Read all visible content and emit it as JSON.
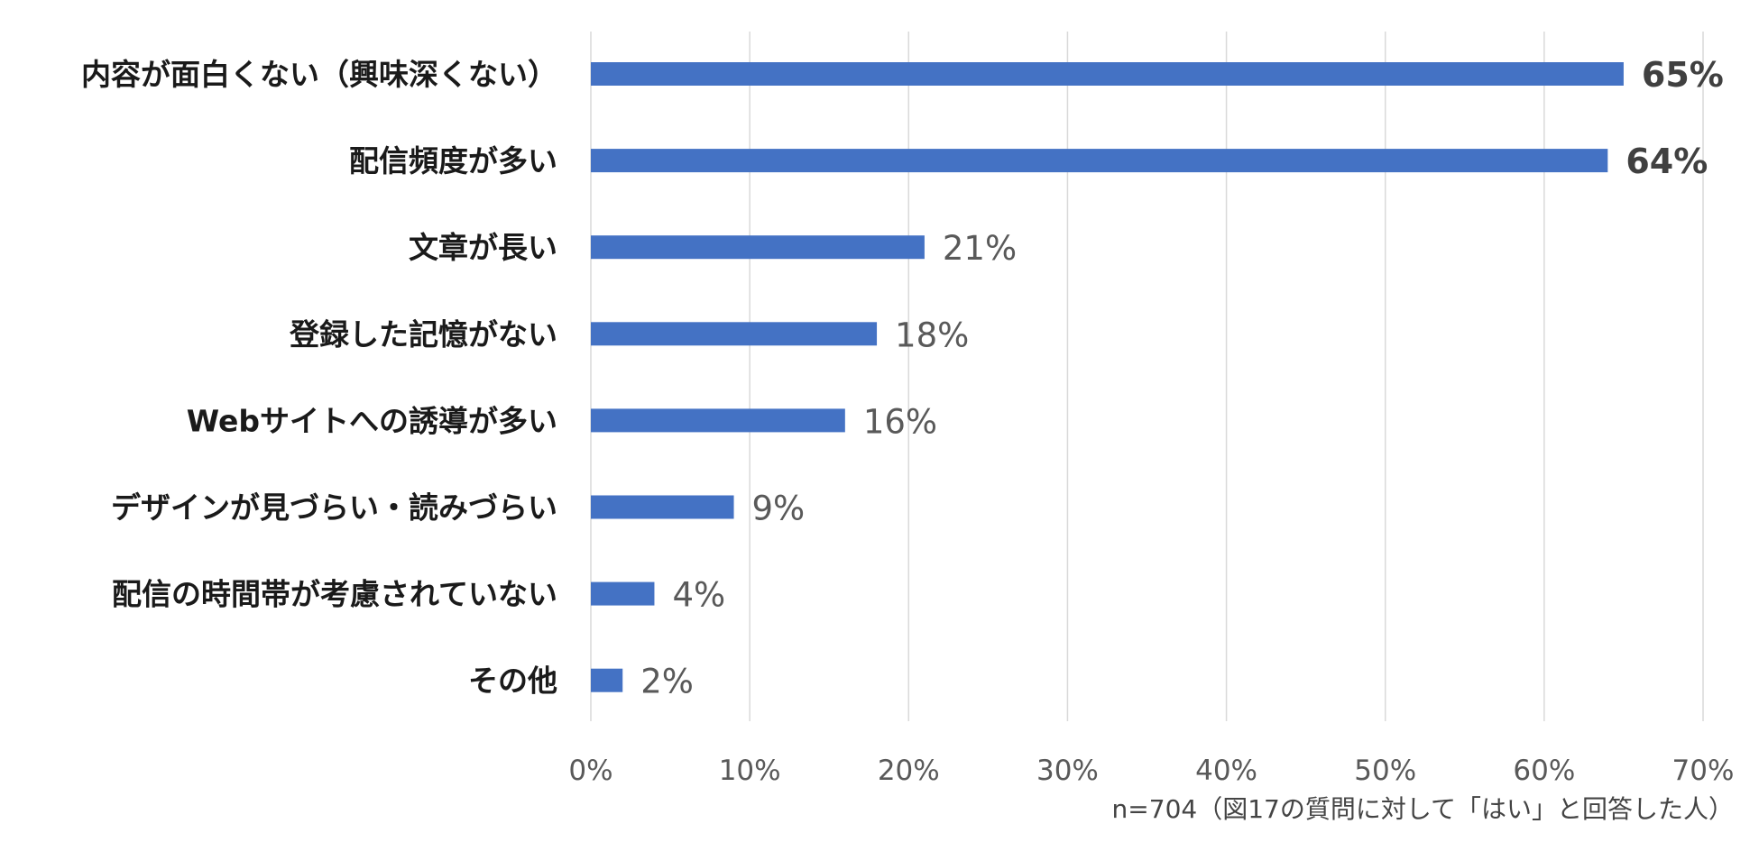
{
  "chart_data": {
    "type": "bar",
    "orientation": "horizontal",
    "categories": [
      "内容が面白くない（興味深くない）",
      "配信頻度が多い",
      "文章が長い",
      "登録した記憶がない",
      "Webサイトへの誘導が多い",
      "デザインが見づらい・読みづらい",
      "配信の時間帯が考慮されていない",
      "その他"
    ],
    "values": [
      65,
      64,
      21,
      18,
      16,
      9,
      4,
      2
    ],
    "value_labels": [
      "65%",
      "64%",
      "21%",
      "18%",
      "16%",
      "9%",
      "4%",
      "2%"
    ],
    "highlighted": [
      true,
      true,
      false,
      false,
      false,
      false,
      false,
      false
    ],
    "xlim": [
      0,
      70
    ],
    "xticks": [
      "0%",
      "10%",
      "20%",
      "30%",
      "40%",
      "50%",
      "60%",
      "70%"
    ],
    "grid": true,
    "bar_color": "#4472C4",
    "grid_color": "#D9D9D9",
    "label_color": "#1a1a1a",
    "value_color": "#595959",
    "highlight_value_color": "#404040"
  },
  "note": "n=704（図17の質問に対して「はい」と回答した人）"
}
